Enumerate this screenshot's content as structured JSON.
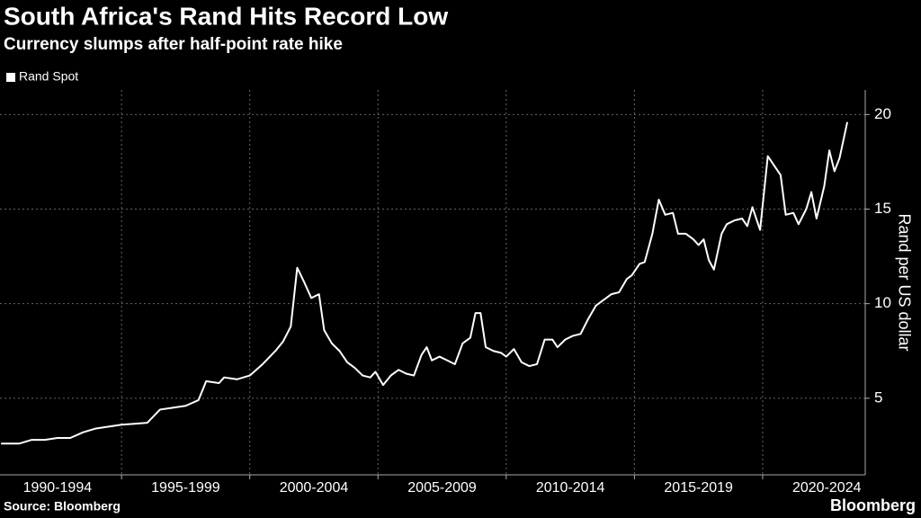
{
  "chart_data": {
    "type": "line",
    "title": "South Africa's Rand Hits Record Low",
    "subtitle": "Currency slumps after half-point rate hike",
    "y_label": "Rand per US dollar",
    "source": "Source: Bloomberg",
    "brand": "Bloomberg",
    "x": [
      1990.3,
      1990.6,
      1991,
      1991.5,
      1992,
      1992.5,
      1993,
      1993.5,
      1994,
      1994.5,
      1995,
      1995.5,
      1996,
      1996.5,
      1997,
      1997.5,
      1998,
      1998.3,
      1998.8,
      1999,
      1999.5,
      2000,
      2000.5,
      2001,
      2001.3,
      2001.6,
      2001.85,
      2002.1,
      2002.4,
      2002.7,
      2002.9,
      2003.2,
      2003.5,
      2003.8,
      2004.1,
      2004.4,
      2004.7,
      2004.9,
      2005.2,
      2005.5,
      2005.8,
      2006.1,
      2006.4,
      2006.7,
      2006.9,
      2007.1,
      2007.4,
      2007.7,
      2008.0,
      2008.3,
      2008.6,
      2008.8,
      2009.0,
      2009.2,
      2009.5,
      2009.8,
      2010.0,
      2010.3,
      2010.6,
      2010.9,
      2011.2,
      2011.5,
      2011.8,
      2012.0,
      2012.3,
      2012.6,
      2012.9,
      2013.2,
      2013.5,
      2013.8,
      2014.1,
      2014.4,
      2014.7,
      2014.9,
      2015.2,
      2015.4,
      2015.7,
      2015.95,
      2016.2,
      2016.5,
      2016.7,
      2017.0,
      2017.3,
      2017.5,
      2017.7,
      2017.9,
      2018.1,
      2018.4,
      2018.6,
      2018.9,
      2019.2,
      2019.4,
      2019.6,
      2019.9,
      2020.2,
      2020.4,
      2020.7,
      2020.9,
      2021.2,
      2021.4,
      2021.7,
      2021.9,
      2022.1,
      2022.4,
      2022.6,
      2022.8,
      2023.0,
      2023.3
    ],
    "series": [
      {
        "name": "Rand Spot",
        "color": "#ffffff",
        "values": [
          2.6,
          2.6,
          2.6,
          2.8,
          2.8,
          2.9,
          2.9,
          3.2,
          3.4,
          3.5,
          3.6,
          3.65,
          3.7,
          4.4,
          4.5,
          4.6,
          4.9,
          5.9,
          5.8,
          6.1,
          6.0,
          6.2,
          6.8,
          7.5,
          8.0,
          8.8,
          11.9,
          11.2,
          10.3,
          10.5,
          8.6,
          7.9,
          7.5,
          6.9,
          6.6,
          6.2,
          6.1,
          6.4,
          5.7,
          6.2,
          6.5,
          6.3,
          6.2,
          7.3,
          7.7,
          7.0,
          7.2,
          7.0,
          6.8,
          7.9,
          8.2,
          9.5,
          9.5,
          7.7,
          7.5,
          7.4,
          7.2,
          7.6,
          6.9,
          6.7,
          6.8,
          8.1,
          8.1,
          7.7,
          8.1,
          8.3,
          8.4,
          9.2,
          9.9,
          10.2,
          10.5,
          10.6,
          11.3,
          11.5,
          12.1,
          12.2,
          13.7,
          15.5,
          14.7,
          14.8,
          13.7,
          13.7,
          13.4,
          13.1,
          13.4,
          12.3,
          11.8,
          13.7,
          14.2,
          14.4,
          14.5,
          14.1,
          15.1,
          13.9,
          17.8,
          17.4,
          16.8,
          14.7,
          14.8,
          14.2,
          15.0,
          15.9,
          14.5,
          16.2,
          18.1,
          17.0,
          17.7,
          19.6
        ]
      }
    ],
    "xlim": [
      1990.26,
      2024.0
    ],
    "xticks": [
      {
        "value": 1992.5,
        "label": "1990-1994"
      },
      {
        "value": 1997.5,
        "label": "1995-1999"
      },
      {
        "value": 2002.5,
        "label": "2000-2004"
      },
      {
        "value": 2007.5,
        "label": "2005-2009"
      },
      {
        "value": 2012.5,
        "label": "2010-2014"
      },
      {
        "value": 2017.5,
        "label": "2015-2019"
      },
      {
        "value": 2022.5,
        "label": "2020-2024"
      }
    ],
    "xgrid": [
      1995,
      2000,
      2005,
      2010,
      2015,
      2020
    ],
    "ylim": [
      0.95,
      21.3
    ],
    "yticks": [
      5,
      10,
      15,
      20
    ],
    "grid": true
  }
}
